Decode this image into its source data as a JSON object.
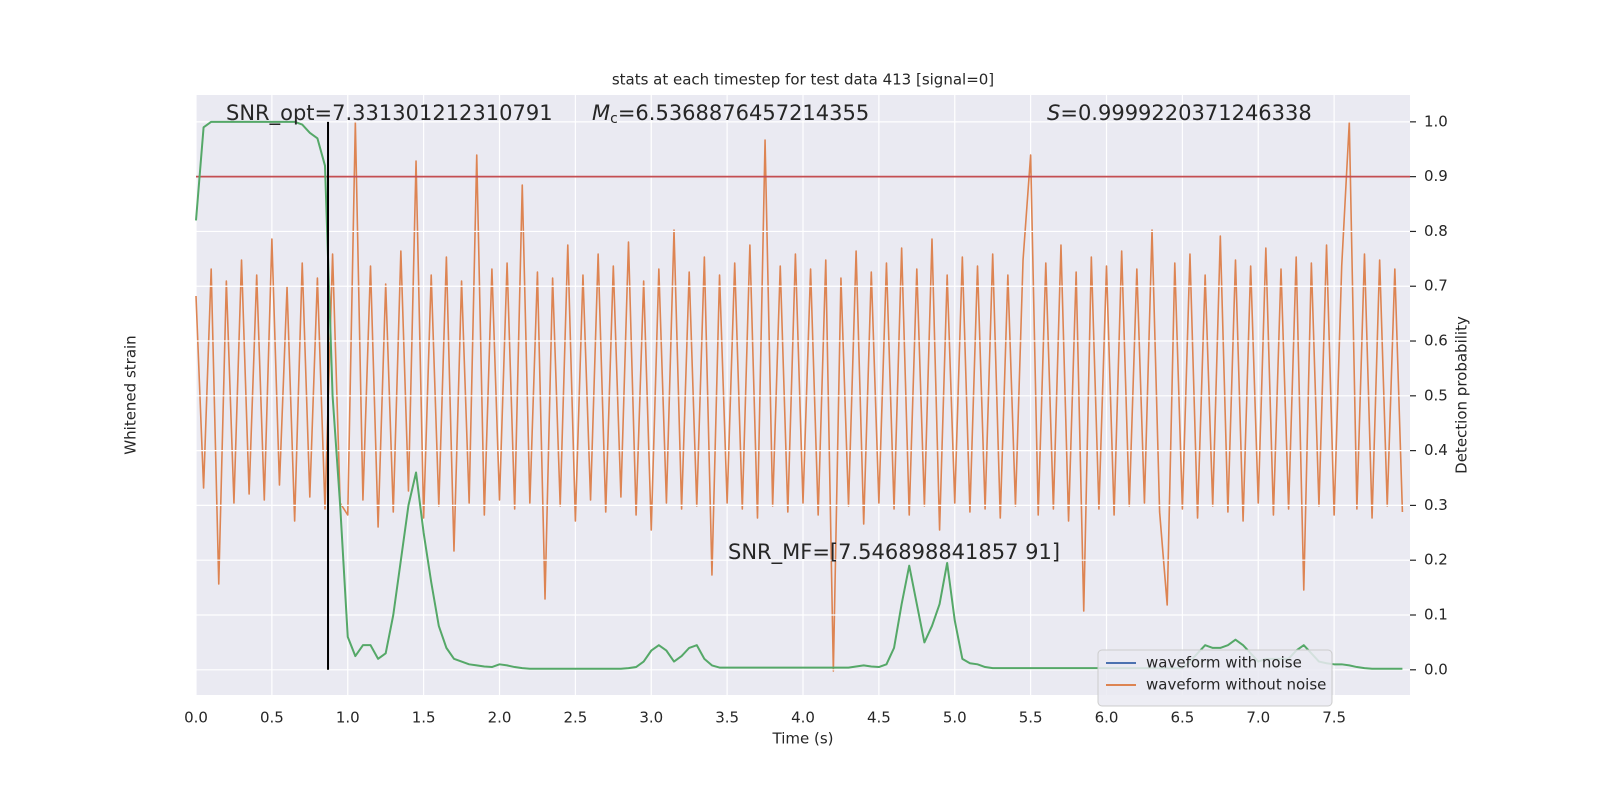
{
  "chart_data": {
    "type": "line",
    "title": "stats at each timestep for test data 413 [signal=0]",
    "xlabel": "Time (s)",
    "ylabel": "Whitened strain",
    "y2label": "Detection probability",
    "annotations": {
      "snr_opt": {
        "text": "SNR_opt=7.331301212310791"
      },
      "chirp_mass": {
        "symbol": "M",
        "subscript": "c",
        "text": "=6.5368876457214355"
      },
      "s": {
        "symbol": "S",
        "text": "=0.9999220371246338"
      },
      "snr_mf": {
        "text": "SNR_MF=[7.546898841857 91]"
      }
    },
    "xlim": [
      0,
      8.0
    ],
    "xticks": [
      {
        "value": 0,
        "label": "0.0"
      },
      {
        "value": 0.5,
        "label": "0.5"
      },
      {
        "value": 1,
        "label": "1.0"
      },
      {
        "value": 1.5,
        "label": "1.5"
      },
      {
        "value": 2,
        "label": "2.0"
      },
      {
        "value": 2.5,
        "label": "2.5"
      },
      {
        "value": 3,
        "label": "3.0"
      },
      {
        "value": 3.5,
        "label": "3.5"
      },
      {
        "value": 4,
        "label": "4.0"
      },
      {
        "value": 4.5,
        "label": "4.5"
      },
      {
        "value": 5,
        "label": "5.0"
      },
      {
        "value": 5.5,
        "label": "5.5"
      },
      {
        "value": 6,
        "label": "6.0"
      },
      {
        "value": 6.5,
        "label": "6.5"
      },
      {
        "value": 7,
        "label": "7.0"
      },
      {
        "value": 7.5,
        "label": "7.5"
      }
    ],
    "ylim": [
      -1,
      1
    ],
    "y2lim": [
      -0.046,
      1.049
    ],
    "y2ticks": [
      {
        "value": 0,
        "label": "0.0"
      },
      {
        "value": 0.1,
        "label": "0.1"
      },
      {
        "value": 0.2,
        "label": "0.2"
      },
      {
        "value": 0.3,
        "label": "0.3"
      },
      {
        "value": 0.4,
        "label": "0.4"
      },
      {
        "value": 0.5,
        "label": "0.5"
      },
      {
        "value": 0.6,
        "label": "0.6"
      },
      {
        "value": 0.7,
        "label": "0.7"
      },
      {
        "value": 0.8,
        "label": "0.8"
      },
      {
        "value": 0.9,
        "label": "0.9"
      },
      {
        "value": 1,
        "label": "1.0"
      }
    ],
    "grid": true,
    "legend_loc": "lower right",
    "hline": {
      "value": 0.9,
      "color": "#c44e52",
      "axis": "y2"
    },
    "vline": {
      "value": 0.87,
      "color": "#000000",
      "y2range": [
        0,
        1
      ]
    },
    "x": [
      0,
      0.05,
      0.1,
      0.15,
      0.2,
      0.25,
      0.3,
      0.35,
      0.4,
      0.45,
      0.5,
      0.55,
      0.6,
      0.65,
      0.7,
      0.75,
      0.8,
      0.85,
      0.9,
      0.95,
      1,
      1.05,
      1.1,
      1.15,
      1.2,
      1.25,
      1.3,
      1.35,
      1.4,
      1.45,
      1.5,
      1.55,
      1.6,
      1.65,
      1.7,
      1.75,
      1.8,
      1.85,
      1.9,
      1.95,
      2,
      2.05,
      2.1,
      2.15,
      2.2,
      2.25,
      2.3,
      2.35,
      2.4,
      2.45,
      2.5,
      2.55,
      2.6,
      2.65,
      2.7,
      2.75,
      2.8,
      2.85,
      2.9,
      2.95,
      3,
      3.05,
      3.1,
      3.15,
      3.2,
      3.25,
      3.3,
      3.35,
      3.4,
      3.45,
      3.5,
      3.55,
      3.6,
      3.65,
      3.7,
      3.75,
      3.8,
      3.85,
      3.9,
      3.95,
      4,
      4.05,
      4.1,
      4.15,
      4.2,
      4.25,
      4.3,
      4.35,
      4.4,
      4.45,
      4.5,
      4.55,
      4.6,
      4.65,
      4.7,
      4.75,
      4.8,
      4.85,
      4.9,
      4.95,
      5,
      5.05,
      5.1,
      5.15,
      5.2,
      5.25,
      5.3,
      5.35,
      5.4,
      5.45,
      5.5,
      5.55,
      5.6,
      5.65,
      5.7,
      5.75,
      5.8,
      5.85,
      5.9,
      5.95,
      6,
      6.05,
      6.1,
      6.15,
      6.2,
      6.25,
      6.3,
      6.35,
      6.4,
      6.45,
      6.5,
      6.55,
      6.6,
      6.65,
      6.7,
      6.75,
      6.8,
      6.85,
      6.9,
      6.95,
      7,
      7.05,
      7.1,
      7.15,
      7.2,
      7.25,
      7.3,
      7.35,
      7.4,
      7.45,
      7.5,
      7.55,
      7.6,
      7.65,
      7.7,
      7.75,
      7.8,
      7.85,
      7.9,
      7.95
    ],
    "series": [
      {
        "name": "waveform with noise",
        "color": "#4c72b0",
        "values": [
          null,
          null,
          null,
          null,
          null,
          null,
          null,
          null,
          null,
          null,
          null,
          null,
          null,
          null,
          null,
          null,
          null,
          null,
          null,
          null,
          null,
          null,
          null,
          null,
          null,
          null,
          null,
          null,
          null,
          null,
          null,
          null,
          null,
          null,
          null,
          null,
          null,
          null,
          null,
          null,
          null,
          null,
          null,
          null,
          null,
          null,
          null,
          null,
          null,
          null,
          null,
          null,
          null,
          null,
          null,
          null,
          null,
          null,
          null,
          null,
          null,
          null,
          null,
          null,
          null,
          null,
          null,
          null,
          null,
          null,
          null,
          null,
          null,
          null,
          null,
          null,
          null,
          null,
          null,
          null,
          null,
          null,
          null,
          null,
          null,
          null,
          null,
          null,
          null,
          null,
          null,
          null,
          null,
          null,
          null,
          null,
          null,
          null,
          null,
          null,
          null,
          null,
          null,
          null,
          null,
          null,
          null,
          null,
          null,
          null,
          null,
          null,
          null,
          null,
          null,
          null,
          null,
          null,
          null,
          null,
          null,
          null,
          null,
          null,
          null,
          null,
          null,
          null,
          null,
          null,
          null,
          null,
          null,
          null,
          null,
          null,
          null,
          null,
          null,
          null,
          null,
          null,
          null,
          null,
          null,
          null,
          null,
          null,
          null,
          null,
          null,
          null,
          null,
          null,
          null,
          null,
          null,
          null,
          null,
          null
        ]
      },
      {
        "name": "waveform without noise",
        "color": "#dd8452",
        "values": [
          0.33,
          -0.31,
          0.42,
          -0.63,
          0.38,
          -0.36,
          0.45,
          -0.33,
          0.4,
          -0.35,
          0.52,
          -0.3,
          0.36,
          -0.42,
          0.44,
          -0.34,
          0.39,
          -0.38,
          0.47,
          -0.36,
          -0.4,
          0.91,
          -0.35,
          0.43,
          -0.44,
          0.37,
          -0.39,
          0.48,
          -0.32,
          0.78,
          -0.41,
          0.4,
          -0.37,
          0.46,
          -0.52,
          0.38,
          -0.36,
          0.8,
          -0.4,
          0.42,
          -0.35,
          0.44,
          -0.38,
          0.7,
          -0.36,
          0.41,
          -0.68,
          0.39,
          -0.37,
          0.5,
          -0.42,
          0.4,
          -0.35,
          0.47,
          -0.39,
          0.43,
          -0.34,
          0.51,
          -0.4,
          0.38,
          -0.45,
          0.42,
          -0.36,
          0.55,
          -0.38,
          0.41,
          -0.37,
          0.46,
          -0.6,
          0.4,
          -0.36,
          0.44,
          -0.38,
          0.5,
          -0.41,
          0.85,
          -0.37,
          0.43,
          -0.39,
          0.47,
          -0.36,
          0.42,
          -0.4,
          0.45,
          -0.92,
          0.39,
          -0.37,
          0.48,
          -0.43,
          0.41,
          -0.36,
          0.44,
          -0.38,
          0.49,
          -0.4,
          0.42,
          -0.37,
          0.52,
          -0.45,
          0.4,
          -0.36,
          0.46,
          -0.39,
          0.43,
          -0.38,
          0.47,
          -0.41,
          0.4,
          -0.37,
          0.45,
          0.8,
          -0.4,
          0.44,
          -0.38,
          0.5,
          -0.42,
          0.41,
          -0.72,
          0.46,
          -0.38,
          0.43,
          -0.4,
          0.48,
          -0.37,
          0.42,
          -0.36,
          0.55,
          -0.39,
          -0.7,
          0.44,
          -0.38,
          0.47,
          -0.41,
          0.4,
          -0.37,
          0.53,
          -0.39,
          0.45,
          -0.42,
          0.43,
          -0.36,
          0.49,
          -0.4,
          0.42,
          -0.38,
          0.46,
          -0.65,
          0.44,
          -0.37,
          0.5,
          -0.4,
          0.43,
          0.91,
          -0.38,
          0.47,
          -0.41,
          0.45,
          -0.37,
          0.42,
          -0.39
        ]
      },
      {
        "color": "#55a868",
        "axis": "y2",
        "values": [
          0.82,
          0.99,
          1,
          1,
          1,
          1,
          1,
          1,
          1,
          1,
          1,
          1,
          1,
          1,
          0.995,
          0.98,
          0.97,
          0.92,
          0.5,
          0.3,
          0.06,
          0.025,
          0.045,
          0.045,
          0.02,
          0.03,
          0.1,
          0.2,
          0.3,
          0.36,
          0.25,
          0.16,
          0.08,
          0.04,
          0.02,
          0.015,
          0.01,
          0.008,
          0.006,
          0.005,
          0.01,
          0.008,
          0.005,
          0.003,
          0.002,
          0.002,
          0.002,
          0.002,
          0.002,
          0.002,
          0.002,
          0.002,
          0.002,
          0.002,
          0.002,
          0.002,
          0.002,
          0.003,
          0.005,
          0.015,
          0.035,
          0.045,
          0.035,
          0.015,
          0.025,
          0.04,
          0.045,
          0.02,
          0.008,
          0.004,
          0.004,
          0.004,
          0.004,
          0.004,
          0.004,
          0.004,
          0.004,
          0.004,
          0.004,
          0.004,
          0.004,
          0.004,
          0.004,
          0.004,
          0.004,
          0.004,
          0.004,
          0.006,
          0.008,
          0.006,
          0.005,
          0.01,
          0.04,
          0.12,
          0.19,
          0.12,
          0.05,
          0.08,
          0.12,
          0.195,
          0.09,
          0.02,
          0.012,
          0.01,
          0.005,
          0.003,
          0.003,
          0.003,
          0.003,
          0.003,
          0.003,
          0.003,
          0.003,
          0.003,
          0.003,
          0.003,
          0.003,
          0.003,
          0.003,
          0.003,
          0.003,
          0.003,
          0.003,
          0.003,
          0.003,
          0.003,
          0.003,
          0.003,
          0.003,
          0.003,
          0.003,
          0.015,
          0.03,
          0.045,
          0.04,
          0.04,
          0.045,
          0.055,
          0.045,
          0.03,
          0.015,
          0.02,
          0.02,
          0.02,
          0.02,
          0.035,
          0.045,
          0.03,
          0.015,
          0.012,
          0.01,
          0.01,
          0.008,
          0.005,
          0.003,
          0.002,
          0.002,
          0.002,
          0.002,
          0.002
        ]
      }
    ]
  }
}
